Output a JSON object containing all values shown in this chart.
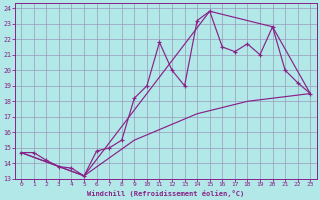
{
  "xlabel": "Windchill (Refroidissement éolien,°C)",
  "bg_color": "#b2e8e8",
  "line_color": "#882288",
  "grid_color": "#9999bb",
  "xlim": [
    -0.5,
    23.5
  ],
  "ylim": [
    13,
    24.3
  ],
  "xtick_vals": [
    0,
    1,
    2,
    3,
    4,
    5,
    6,
    7,
    8,
    9,
    10,
    11,
    12,
    13,
    14,
    15,
    16,
    17,
    18,
    19,
    20,
    21,
    22,
    23
  ],
  "ytick_vals": [
    13,
    14,
    15,
    16,
    17,
    18,
    19,
    20,
    21,
    22,
    23,
    24
  ],
  "series_main": [
    [
      0,
      14.7
    ],
    [
      1,
      14.7
    ],
    [
      2,
      14.2
    ],
    [
      3,
      13.8
    ],
    [
      4,
      13.7
    ],
    [
      5,
      13.2
    ],
    [
      6,
      14.8
    ],
    [
      7,
      15.0
    ],
    [
      8,
      15.5
    ],
    [
      9,
      18.2
    ],
    [
      10,
      19.0
    ],
    [
      11,
      21.8
    ],
    [
      12,
      20.0
    ],
    [
      13,
      19.0
    ],
    [
      14,
      23.2
    ],
    [
      15,
      23.8
    ],
    [
      16,
      21.5
    ],
    [
      17,
      21.2
    ],
    [
      18,
      21.7
    ],
    [
      19,
      21.0
    ],
    [
      20,
      22.8
    ],
    [
      21,
      20.0
    ],
    [
      22,
      19.2
    ],
    [
      23,
      18.5
    ]
  ],
  "series_upper": [
    [
      0,
      14.7
    ],
    [
      5,
      13.2
    ],
    [
      15,
      23.8
    ],
    [
      20,
      22.8
    ],
    [
      23,
      18.5
    ]
  ],
  "series_lower": [
    [
      0,
      14.7
    ],
    [
      5,
      13.2
    ],
    [
      9,
      15.5
    ],
    [
      14,
      17.2
    ],
    [
      18,
      18.0
    ],
    [
      23,
      18.5
    ]
  ]
}
